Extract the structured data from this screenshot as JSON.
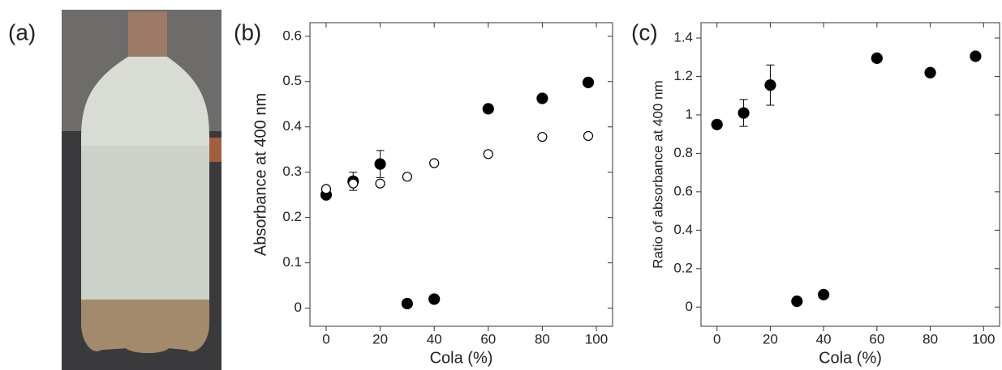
{
  "panel_labels": [
    "(a)",
    "(b)",
    "(c)"
  ],
  "chart_data": [
    {
      "type": "scatter",
      "xlabel": "Cola (%)",
      "ylabel": "Absorbance at 400 nm",
      "xlim": [
        -6,
        106
      ],
      "ylim": [
        -0.04,
        0.63
      ],
      "xticks": [
        0,
        20,
        40,
        60,
        80,
        100
      ],
      "yticks": [
        0,
        0.1,
        0.2,
        0.3,
        0.4,
        0.5,
        0.6
      ],
      "series": [
        {
          "marker": "filled",
          "color": "#000000",
          "x": [
            0,
            10,
            20,
            30,
            40,
            60,
            80,
            97
          ],
          "values": [
            0.25,
            0.28,
            0.318,
            0.01,
            0.02,
            0.44,
            0.463,
            0.498
          ],
          "errors": [
            null,
            0.02,
            0.03,
            null,
            null,
            null,
            null,
            null
          ]
        },
        {
          "marker": "open",
          "color": "#000000",
          "x": [
            0,
            10,
            20,
            30,
            40,
            60,
            80,
            97
          ],
          "values": [
            0.263,
            0.275,
            0.275,
            0.29,
            0.32,
            0.34,
            0.378,
            0.38
          ],
          "errors": [
            null,
            null,
            null,
            null,
            null,
            null,
            null,
            null
          ]
        }
      ]
    },
    {
      "type": "scatter",
      "xlabel": "Cola (%)",
      "ylabel": "Ratio of absorbance at 400 nm",
      "xlim": [
        -6,
        106
      ],
      "ylim": [
        -0.1,
        1.48
      ],
      "xticks": [
        0,
        20,
        40,
        60,
        80,
        100
      ],
      "yticks": [
        0,
        0.2,
        0.4,
        0.6,
        0.8,
        1,
        1.2,
        1.4
      ],
      "series": [
        {
          "marker": "filled",
          "color": "#000000",
          "x": [
            0,
            10,
            20,
            30,
            40,
            60,
            80,
            97
          ],
          "values": [
            0.95,
            1.01,
            1.155,
            0.03,
            0.065,
            1.295,
            1.22,
            1.305
          ],
          "errors": [
            null,
            0.07,
            0.105,
            null,
            null,
            null,
            null,
            null
          ]
        }
      ]
    }
  ]
}
